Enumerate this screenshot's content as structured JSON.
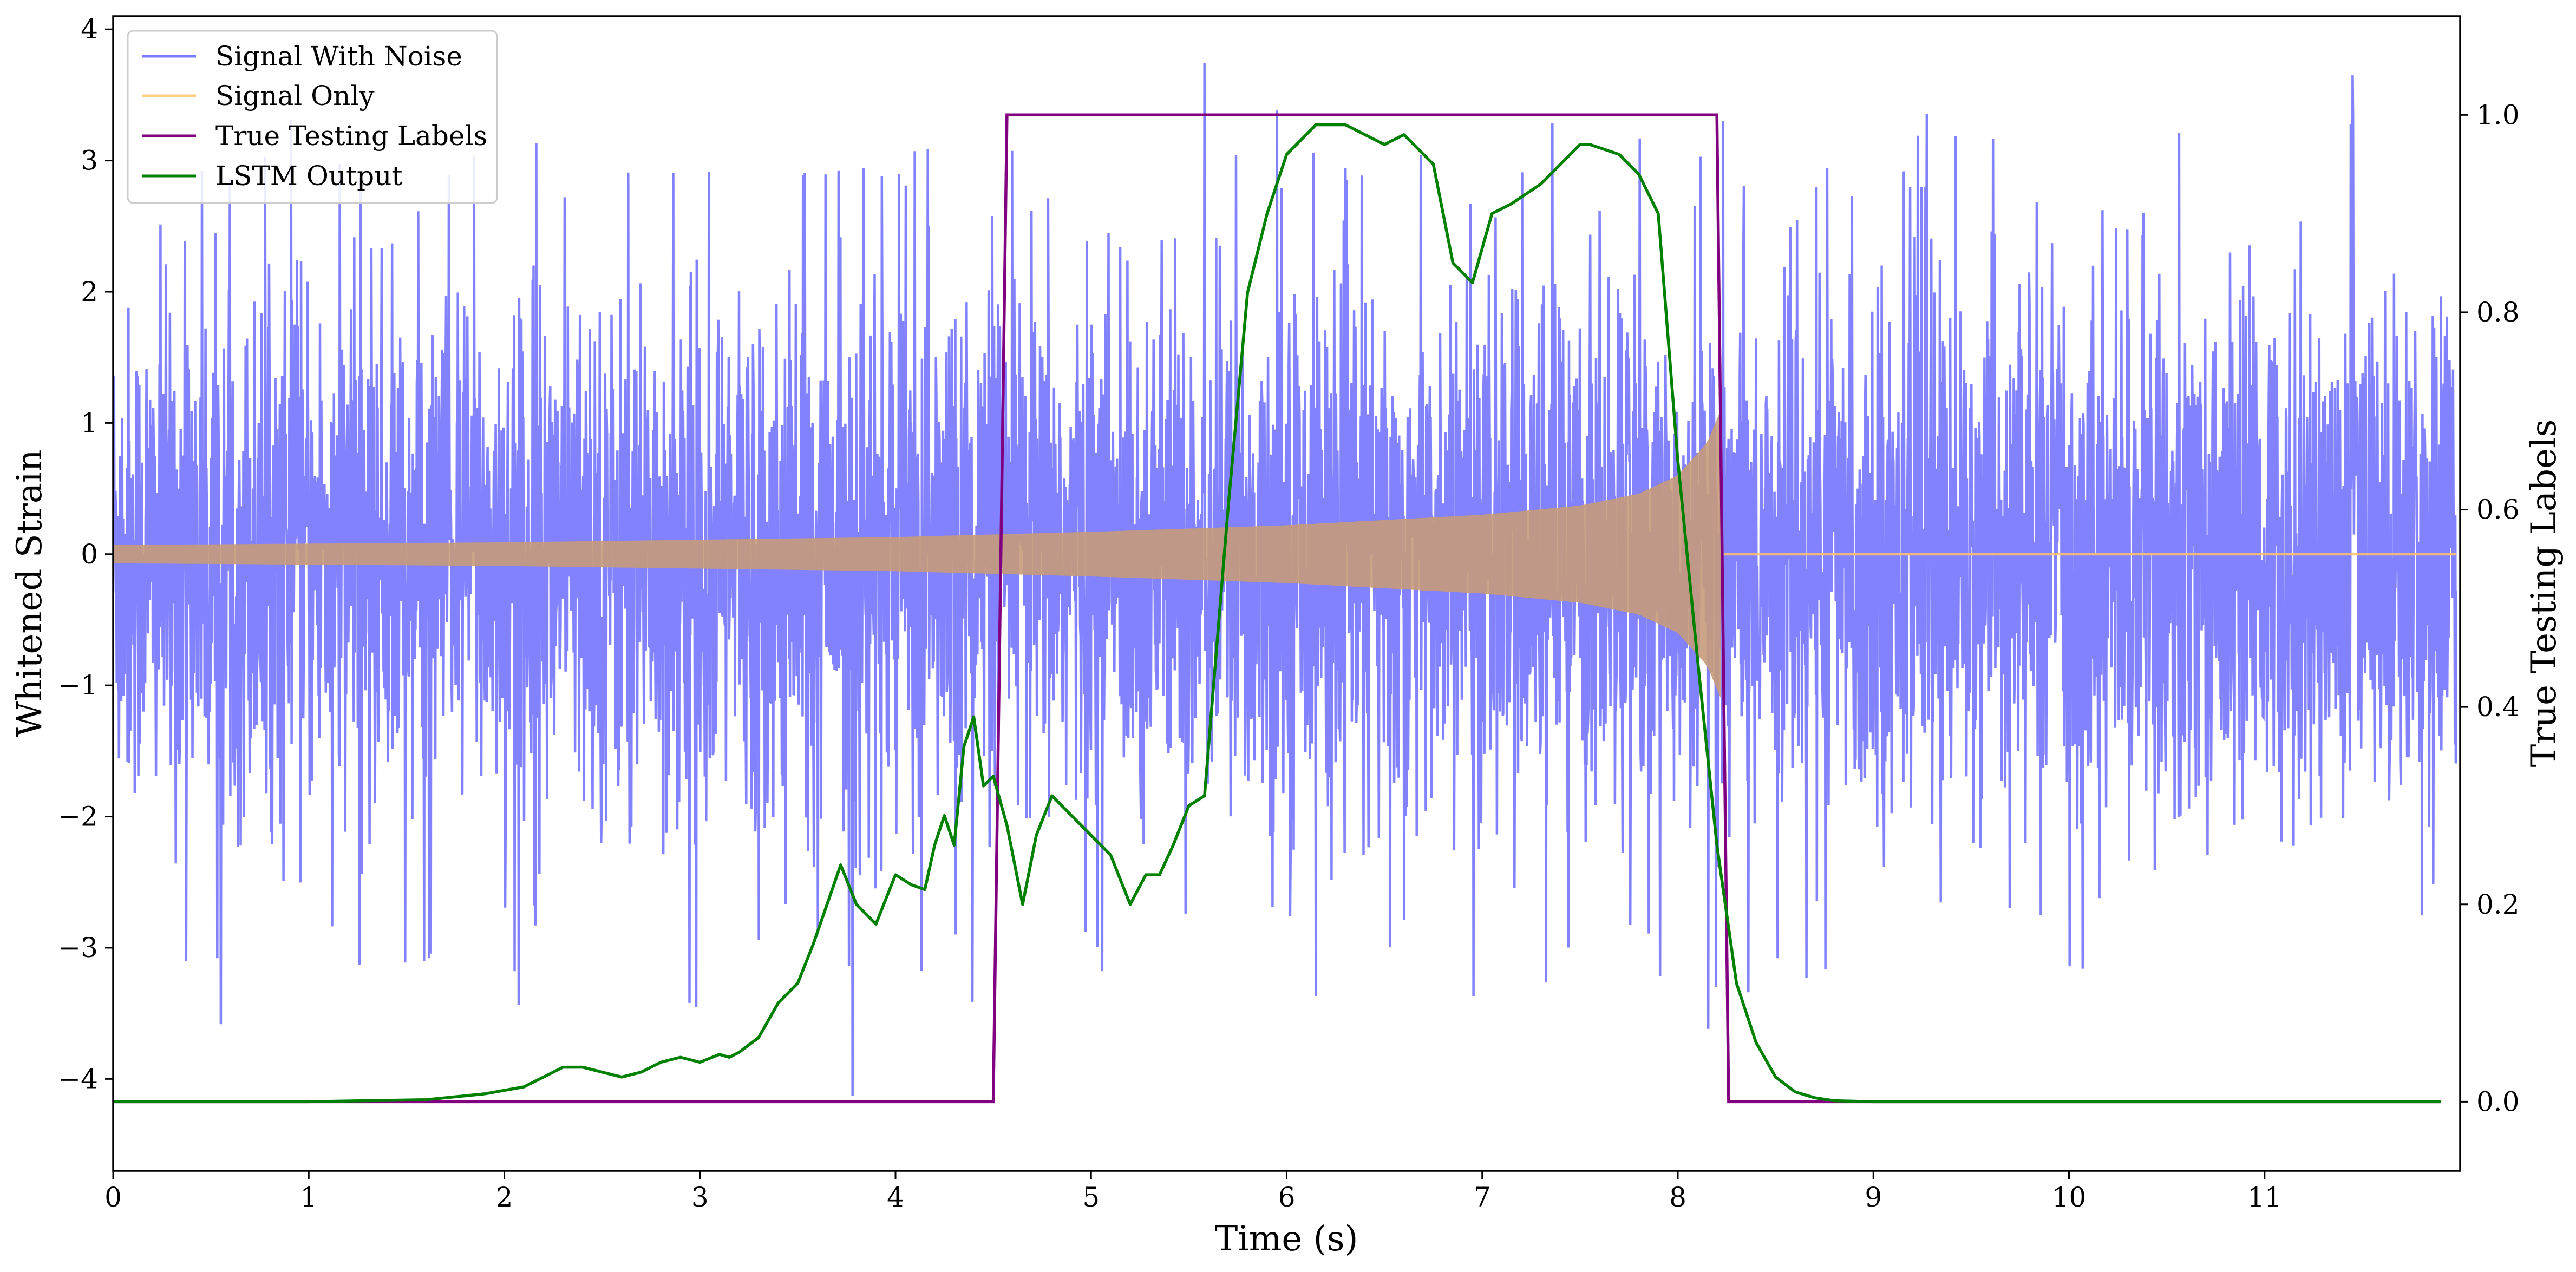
{
  "chart_data": {
    "type": "line",
    "title": "",
    "xlabel": "Time (s)",
    "ylabel": "Whitened Strain",
    "y2label": "True Testing Labels",
    "xlim": [
      0,
      12
    ],
    "ylim": [
      -4.7,
      4.1
    ],
    "y2lim": [
      -0.07,
      1.1
    ],
    "xticks": [
      "0",
      "1",
      "2",
      "3",
      "4",
      "5",
      "6",
      "7",
      "8",
      "9",
      "10",
      "11"
    ],
    "yticks": [
      "−4",
      "−3",
      "−2",
      "−1",
      "0",
      "1",
      "2",
      "3",
      "4"
    ],
    "y2ticks": [
      "0.0",
      "0.2",
      "0.4",
      "0.6",
      "0.8",
      "1.0"
    ],
    "legend_position": "top-left",
    "grid": false,
    "series": [
      {
        "name": "Signal With Noise",
        "axis": "left",
        "color": "#7b7bff",
        "description_range": "noise roughly between -2.7 and 2.8 with spikes reaching -4.25 and 3.7",
        "peaks": [
          {
            "x": 5.58,
            "y": 3.68
          },
          {
            "x": 11.45,
            "y": 3.65
          },
          {
            "x": 3.78,
            "y": -4.25
          },
          {
            "x": 0.55,
            "y": -3.63
          },
          {
            "x": 6.15,
            "y": -3.6
          }
        ]
      },
      {
        "name": "Signal Only",
        "axis": "left",
        "color": "#ffc266",
        "envelope": {
          "x": [
            0,
            1,
            2,
            3,
            4,
            5,
            6,
            7,
            7.5,
            7.8,
            8.0,
            8.15,
            8.22,
            8.23,
            12
          ],
          "amp": [
            0.07,
            0.08,
            0.09,
            0.11,
            0.13,
            0.17,
            0.22,
            0.3,
            0.37,
            0.46,
            0.6,
            0.85,
            1.1,
            0.0,
            0.0
          ]
        }
      },
      {
        "name": "True Testing Labels",
        "axis": "right",
        "color": "#800080",
        "x": [
          0,
          4.5,
          4.57,
          8.2,
          8.26,
          11.9
        ],
        "values": [
          0,
          0,
          1,
          1,
          0,
          0
        ]
      },
      {
        "name": "LSTM Output",
        "axis": "right",
        "color": "#008000",
        "x": [
          0,
          1.0,
          1.6,
          1.9,
          2.1,
          2.2,
          2.3,
          2.4,
          2.5,
          2.6,
          2.7,
          2.8,
          2.9,
          3.0,
          3.1,
          3.15,
          3.2,
          3.3,
          3.4,
          3.5,
          3.58,
          3.65,
          3.72,
          3.8,
          3.9,
          4.0,
          4.08,
          4.15,
          4.2,
          4.25,
          4.3,
          4.35,
          4.4,
          4.45,
          4.5,
          4.57,
          4.65,
          4.72,
          4.8,
          4.9,
          5.0,
          5.1,
          5.2,
          5.28,
          5.35,
          5.42,
          5.5,
          5.58,
          5.7,
          5.8,
          5.9,
          6.0,
          6.05,
          6.15,
          6.3,
          6.5,
          6.6,
          6.75,
          6.85,
          6.95,
          7.05,
          7.15,
          7.3,
          7.45,
          7.5,
          7.55,
          7.7,
          7.8,
          7.9,
          8.0,
          8.1,
          8.2,
          8.3,
          8.4,
          8.5,
          8.6,
          8.7,
          8.8,
          9.0,
          9.5,
          10,
          11,
          11.9
        ],
        "values": [
          0.0,
          0.0,
          0.002,
          0.008,
          0.015,
          0.025,
          0.035,
          0.035,
          0.03,
          0.025,
          0.03,
          0.04,
          0.045,
          0.04,
          0.048,
          0.045,
          0.05,
          0.065,
          0.1,
          0.12,
          0.16,
          0.2,
          0.24,
          0.2,
          0.18,
          0.23,
          0.22,
          0.215,
          0.26,
          0.29,
          0.26,
          0.36,
          0.39,
          0.32,
          0.33,
          0.28,
          0.2,
          0.27,
          0.31,
          0.29,
          0.27,
          0.25,
          0.2,
          0.23,
          0.23,
          0.26,
          0.3,
          0.31,
          0.6,
          0.82,
          0.9,
          0.96,
          0.97,
          0.99,
          0.99,
          0.97,
          0.98,
          0.95,
          0.85,
          0.83,
          0.9,
          0.91,
          0.93,
          0.96,
          0.97,
          0.97,
          0.96,
          0.94,
          0.9,
          0.65,
          0.45,
          0.26,
          0.12,
          0.06,
          0.025,
          0.01,
          0.004,
          0.001,
          0.0,
          0.0,
          0.0,
          0.0,
          0.0
        ]
      }
    ]
  },
  "colors": {
    "frame": "#000000",
    "background": "#ffffff"
  }
}
